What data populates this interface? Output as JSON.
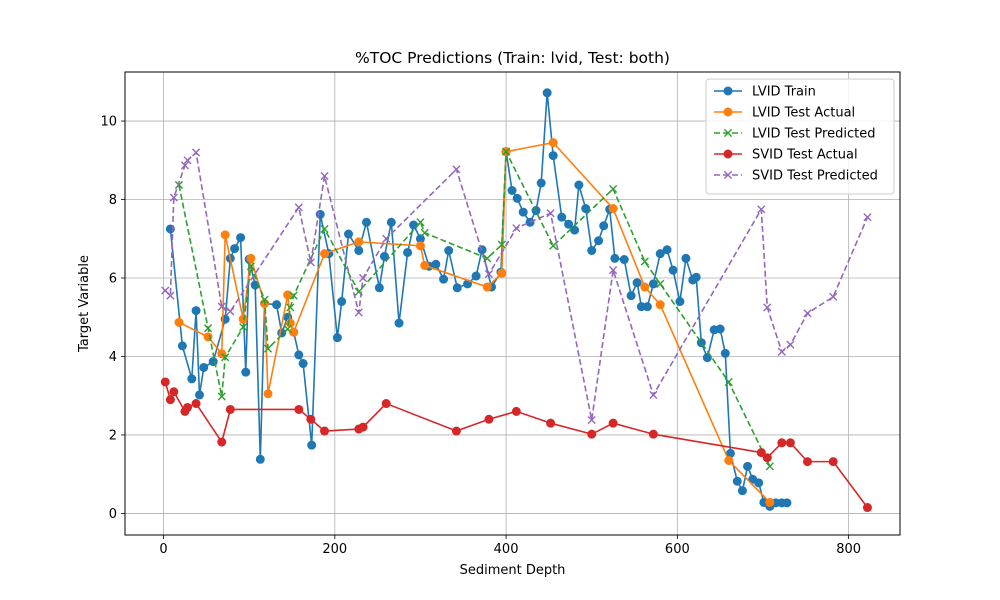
{
  "chart_data": {
    "type": "line",
    "title": "%TOC Predictions (Train: lvid, Test: both)",
    "xlabel": "Sediment Depth",
    "ylabel": "Target Variable",
    "xlim": [
      -45,
      860
    ],
    "ylim": [
      -0.55,
      11.25
    ],
    "xticks": [
      0,
      200,
      400,
      600,
      800
    ],
    "yticks": [
      0,
      2,
      4,
      6,
      8,
      10
    ],
    "grid": true,
    "legend_position": "top-right",
    "series": [
      {
        "name": "LVID Train",
        "color": "#1f77b4",
        "marker": "circle",
        "line_style": "solid",
        "x": [
          8,
          22,
          33,
          38,
          42,
          47,
          58,
          72,
          78,
          83,
          90,
          96,
          100,
          107,
          113,
          118,
          132,
          138,
          145,
          152,
          158,
          163,
          173,
          183,
          193,
          203,
          208,
          216,
          228,
          237,
          252,
          258,
          266,
          275,
          285,
          292,
          300,
          310,
          318,
          327,
          333,
          343,
          355,
          365,
          372,
          383,
          394,
          400,
          407,
          413,
          420,
          428,
          435,
          441,
          448,
          455,
          465,
          473,
          480,
          485,
          493,
          500,
          508,
          514,
          521,
          527,
          538,
          546,
          553,
          558,
          565,
          572,
          580,
          588,
          595,
          603,
          610,
          618,
          622,
          628,
          635,
          643,
          650,
          656,
          662,
          670,
          676,
          682,
          688,
          695,
          701,
          708,
          715,
          722,
          728
        ],
        "y": [
          7.25,
          4.27,
          3.43,
          5.17,
          3.02,
          3.72,
          3.87,
          4.95,
          6.5,
          6.75,
          7.03,
          3.6,
          6.48,
          5.82,
          1.38,
          5.35,
          5.32,
          4.6,
          5.0,
          4.62,
          4.04,
          3.82,
          1.74,
          7.62,
          6.62,
          4.48,
          5.4,
          7.12,
          6.7,
          7.42,
          5.75,
          6.55,
          7.42,
          4.85,
          6.65,
          7.35,
          7.0,
          6.3,
          6.35,
          5.97,
          6.7,
          5.75,
          5.85,
          6.05,
          6.72,
          5.77,
          6.15,
          9.22,
          8.23,
          8.03,
          7.68,
          7.42,
          7.72,
          8.42,
          10.72,
          9.12,
          7.55,
          7.37,
          7.22,
          8.37,
          7.77,
          6.7,
          6.95,
          7.33,
          7.75,
          6.5,
          6.47,
          5.55,
          5.88,
          5.27,
          5.27,
          5.85,
          6.62,
          6.72,
          6.2,
          5.4,
          6.5,
          5.95,
          6.02,
          4.35,
          3.97,
          4.68,
          4.7,
          4.08,
          1.53,
          0.82,
          0.58,
          1.2,
          0.87,
          0.78,
          0.28,
          0.18,
          0.27,
          0.27,
          0.27
        ]
      },
      {
        "name": "LVID Test Actual",
        "color": "#ff7f0e",
        "marker": "circle",
        "line_style": "solid",
        "x": [
          18,
          52,
          68,
          72,
          93,
          102,
          118,
          122,
          145,
          148,
          152,
          188,
          228,
          300,
          305,
          378,
          395,
          400,
          455,
          525,
          562,
          580,
          660,
          708
        ],
        "y": [
          4.87,
          4.5,
          4.07,
          7.1,
          4.95,
          6.5,
          5.35,
          3.05,
          5.57,
          4.85,
          4.62,
          6.62,
          6.92,
          6.82,
          6.32,
          5.77,
          6.12,
          9.22,
          9.45,
          7.77,
          5.77,
          5.32,
          1.35,
          0.28
        ]
      },
      {
        "name": "LVID Test Predicted",
        "color": "#2ca02c",
        "marker": "x",
        "line_style": "dashed",
        "x": [
          18,
          52,
          68,
          72,
          93,
          102,
          118,
          122,
          145,
          148,
          152,
          188,
          228,
          300,
          305,
          378,
          395,
          400,
          455,
          525,
          562,
          580,
          660,
          708
        ],
        "y": [
          8.37,
          4.72,
          2.98,
          3.98,
          4.75,
          6.3,
          5.45,
          4.2,
          4.7,
          5.25,
          5.55,
          7.25,
          5.65,
          7.42,
          7.15,
          6.5,
          6.85,
          9.22,
          6.82,
          8.27,
          6.42,
          5.85,
          3.35,
          1.2
        ]
      },
      {
        "name": "SVID Test Actual",
        "color": "#d62728",
        "marker": "circle",
        "line_style": "solid",
        "x": [
          2,
          8,
          12,
          25,
          28,
          38,
          68,
          78,
          158,
          172,
          188,
          228,
          233,
          260,
          342,
          380,
          412,
          452,
          500,
          525,
          572,
          698,
          705,
          722,
          732,
          752,
          782,
          822
        ],
        "y": [
          3.35,
          2.9,
          3.1,
          2.6,
          2.7,
          2.8,
          1.82,
          2.65,
          2.65,
          2.4,
          2.1,
          2.15,
          2.2,
          2.8,
          2.1,
          2.4,
          2.6,
          2.3,
          2.02,
          2.3,
          2.02,
          1.55,
          1.42,
          1.8,
          1.8,
          1.32,
          1.32,
          0.15
        ]
      },
      {
        "name": "SVID Test Predicted",
        "color": "#9467bd",
        "marker": "x",
        "line_style": "dashed",
        "x": [
          2,
          8,
          12,
          25,
          28,
          38,
          68,
          78,
          158,
          172,
          188,
          228,
          233,
          260,
          342,
          380,
          412,
          452,
          500,
          525,
          572,
          698,
          705,
          722,
          732,
          752,
          782,
          822
        ],
        "y": [
          5.68,
          5.55,
          8.05,
          8.87,
          9.0,
          9.2,
          5.27,
          5.15,
          7.8,
          6.4,
          8.6,
          5.12,
          6.0,
          7.0,
          8.77,
          6.1,
          7.27,
          7.65,
          2.38,
          6.2,
          3.02,
          7.75,
          5.25,
          4.12,
          4.3,
          5.1,
          5.52,
          7.55
        ]
      }
    ]
  }
}
